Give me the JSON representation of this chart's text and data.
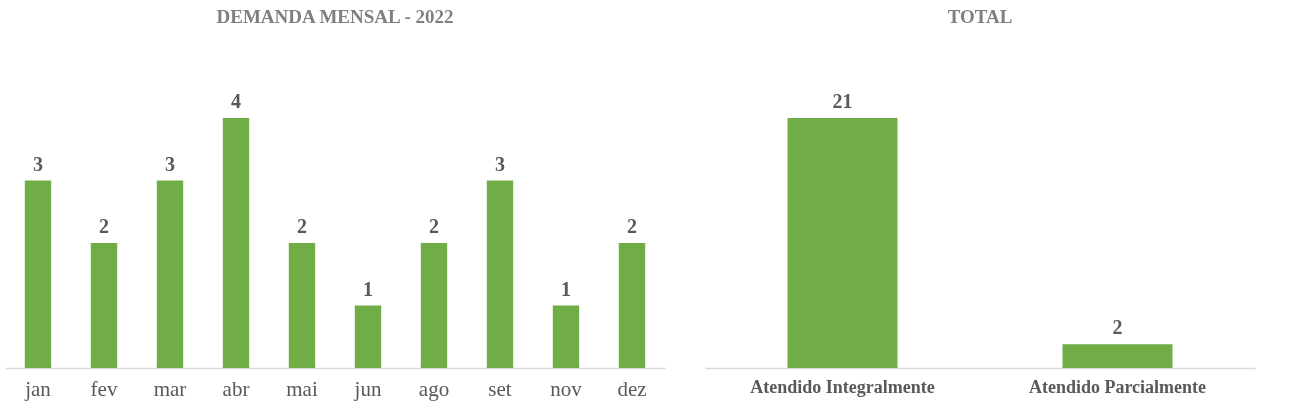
{
  "chart_data": [
    {
      "type": "bar",
      "title": "DEMANDA MENSAL - 2022",
      "categories": [
        "jan",
        "fev",
        "mar",
        "abr",
        "mai",
        "jun",
        "ago",
        "set",
        "nov",
        "dez"
      ],
      "values": [
        3,
        2,
        3,
        4,
        2,
        1,
        2,
        3,
        1,
        2
      ],
      "color": "#70ad47",
      "data_labels": true
    },
    {
      "type": "bar",
      "title": "TOTAL",
      "categories": [
        "Atendido Integralmente",
        "Atendido Parcialmente"
      ],
      "values": [
        21,
        2
      ],
      "color": "#70ad47",
      "data_labels": true
    }
  ]
}
